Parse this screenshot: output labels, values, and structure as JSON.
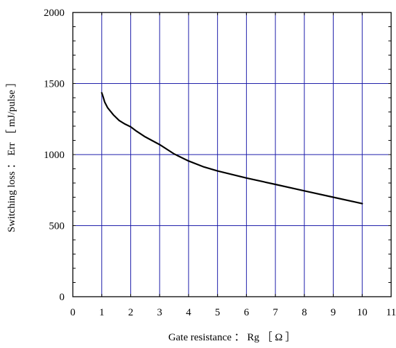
{
  "chart_data": {
    "type": "line",
    "title": "",
    "xlabel": "Gate resistance ： Rg ［ Ω ］",
    "ylabel": "Switching loss ： Err ［ mJ/pulse ］",
    "xlim": [
      0,
      11
    ],
    "ylim": [
      0,
      2000
    ],
    "xticks": [
      "0",
      "1",
      "2",
      "3",
      "4",
      "5",
      "6",
      "7",
      "8",
      "9",
      "10",
      "11"
    ],
    "yticks": [
      "0",
      "500",
      "1000",
      "1500",
      "2000"
    ],
    "grid": true,
    "grid_x_values": [
      1,
      2,
      3,
      4,
      5,
      6,
      7,
      8,
      9,
      10
    ],
    "grid_y_values": [
      500,
      1000,
      1500
    ],
    "series": [
      {
        "x": [
          1.0,
          1.05,
          1.1,
          1.2,
          1.4,
          1.6,
          1.8,
          2.0,
          2.2,
          2.5,
          3.0,
          3.5,
          4.0,
          4.5,
          5.0,
          6.0,
          7.0,
          8.0,
          9.0,
          10.0
        ],
        "y": [
          1435,
          1405,
          1370,
          1330,
          1280,
          1240,
          1215,
          1195,
          1165,
          1125,
          1070,
          1005,
          955,
          915,
          885,
          835,
          790,
          745,
          700,
          655
        ]
      }
    ],
    "colors": {
      "grid": "#1a1aa8",
      "frame": "#000000",
      "line": "#000000"
    }
  }
}
